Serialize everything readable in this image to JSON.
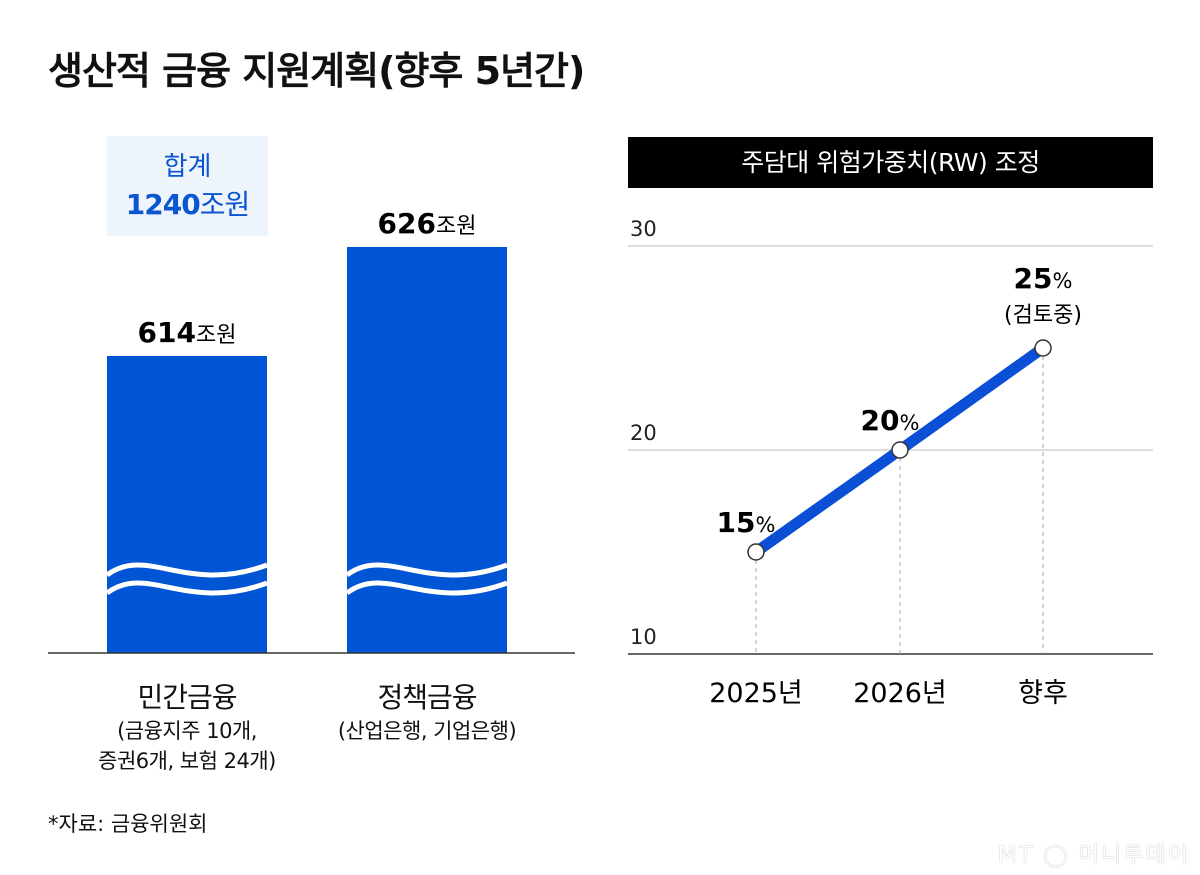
{
  "title": "생산적 금융 지원계획(향후 5년간)",
  "colors": {
    "bar": "#0055d4",
    "line": "#0a4fd6",
    "total_box": "#eef4fc",
    "header": "#000000"
  },
  "chart_data": [
    {
      "type": "bar",
      "axis": "broken (wave)",
      "total": {
        "label": "합계",
        "value": "1240",
        "unit": "조원"
      },
      "categories": [
        "민간금융",
        "정책금융"
      ],
      "category_notes": [
        "(금융지주 10개,\n증권6개, 보험 24개)",
        "(산업은행, 기업은행)"
      ],
      "values": [
        614,
        626
      ],
      "value_labels": [
        "614",
        "626"
      ],
      "unit": "조원"
    },
    {
      "type": "line",
      "title": "주담대 위험가중치(RW) 조정",
      "categories": [
        "2025년",
        "2026년",
        "향후"
      ],
      "values": [
        15,
        20,
        25
      ],
      "data_labels": [
        "15",
        "20",
        "25"
      ],
      "unit": "%",
      "annotation": "(검토중)",
      "ylim": [
        10,
        30
      ],
      "yticks": [
        "10",
        "20",
        "30"
      ],
      "grid": true
    }
  ],
  "source": "*자료: 금융위원회",
  "logo": "MT 머니투데이"
}
